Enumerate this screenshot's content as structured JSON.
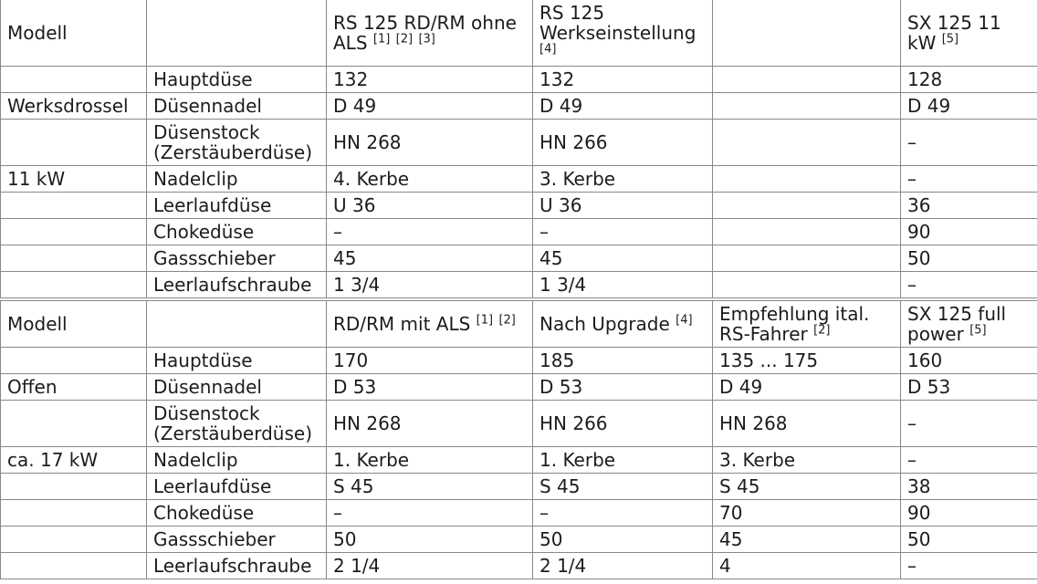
{
  "page": {
    "background_color": "#ffffff",
    "text_color": "#1c1c1c",
    "border_color": "#888888"
  },
  "table": {
    "sections": [
      {
        "header_row": {
          "label": "Modell",
          "spec_label": "",
          "models": [
            {
              "text": "RS 125 RD/RM ohne ALS",
              "refs": [
                "[1]",
                "[2]",
                "[3]"
              ]
            },
            {
              "text": "RS 125 Werkseinstellung",
              "refs": [
                "[4]"
              ]
            },
            {
              "text": "",
              "refs": []
            },
            {
              "text": "SX 125 11 kW",
              "refs": [
                "[5]"
              ]
            }
          ]
        },
        "rows": [
          {
            "group": "",
            "param": "Hauptdüse",
            "values": [
              "132",
              "132",
              "",
              "128"
            ]
          },
          {
            "group": "Werksdrossel",
            "param": "Düsennadel",
            "values": [
              "D 49",
              "D 49",
              "",
              "D 49"
            ]
          },
          {
            "group": "",
            "param": "Düsenstock (Zerstäuberdüse)",
            "values": [
              "HN 268",
              "HN 266",
              "",
              "–"
            ]
          },
          {
            "group": "11 kW",
            "param": "Nadelclip",
            "values": [
              "4. Kerbe",
              "3. Kerbe",
              "",
              "–"
            ]
          },
          {
            "group": "",
            "param": "Leerlaufdüse",
            "values": [
              "U 36",
              "U 36",
              "",
              "36"
            ]
          },
          {
            "group": "",
            "param": "Chokedüse",
            "values": [
              "–",
              "–",
              "",
              "90"
            ]
          },
          {
            "group": "",
            "param": "Gassschieber",
            "values": [
              "45",
              "45",
              "",
              "50"
            ]
          },
          {
            "group": "",
            "param": "Leerlaufschraube",
            "values": [
              "1 3/4",
              "1 3/4",
              "",
              "–"
            ]
          }
        ]
      },
      {
        "header_row": {
          "label": "Modell",
          "spec_label": "",
          "models": [
            {
              "text": "RD/RM mit ALS",
              "refs": [
                "[1]",
                "[2]"
              ]
            },
            {
              "text": "Nach Upgrade",
              "refs": [
                "[4]"
              ]
            },
            {
              "text": "Empfehlung ital. RS-Fahrer",
              "refs": [
                "[2]"
              ]
            },
            {
              "text": "SX 125 full power",
              "refs": [
                "[5]"
              ]
            }
          ]
        },
        "rows": [
          {
            "group": "",
            "param": "Hauptdüse",
            "values": [
              "170",
              "185",
              "135 ... 175",
              "160"
            ]
          },
          {
            "group": "Offen",
            "param": "Düsennadel",
            "values": [
              "D 53",
              "D 53",
              "D 49",
              "D 53"
            ]
          },
          {
            "group": "",
            "param": "Düsenstock (Zerstäuberdüse)",
            "values": [
              "HN 268",
              "HN 266",
              "HN 268",
              "–"
            ]
          },
          {
            "group": "ca. 17 kW",
            "param": "Nadelclip",
            "values": [
              "1. Kerbe",
              "1. Kerbe",
              "3. Kerbe",
              "–"
            ]
          },
          {
            "group": "",
            "param": "Leerlaufdüse",
            "values": [
              "S 45",
              "S 45",
              "S 45",
              "38"
            ]
          },
          {
            "group": "",
            "param": "Chokedüse",
            "values": [
              "–",
              "–",
              "70",
              "90"
            ]
          },
          {
            "group": "",
            "param": "Gassschieber",
            "values": [
              "50",
              "50",
              "45",
              "50"
            ]
          },
          {
            "group": "",
            "param": "Leerlaufschraube",
            "values": [
              "2 1/4",
              "2 1/4",
              "4",
              "–"
            ]
          }
        ]
      }
    ]
  }
}
